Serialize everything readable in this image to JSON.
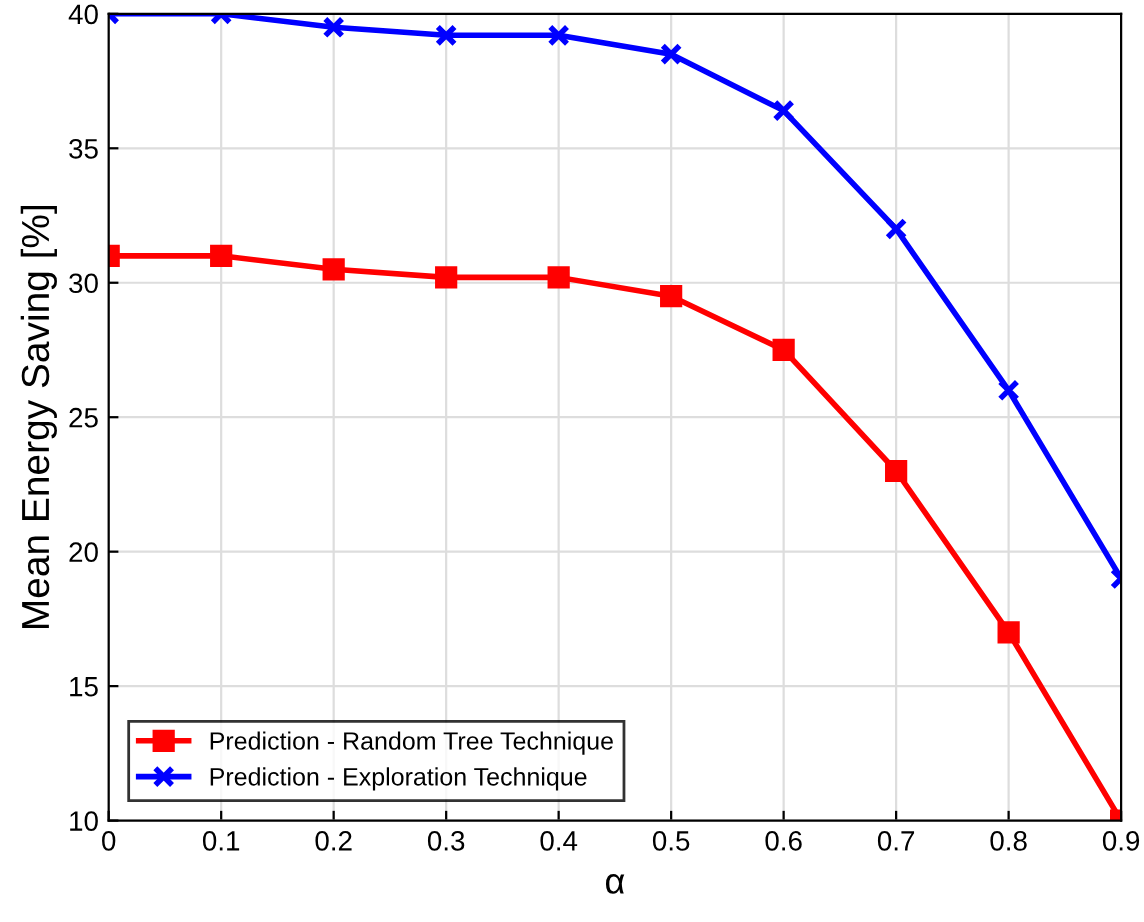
{
  "chart_data": {
    "type": "line",
    "xlabel": "α",
    "ylabel": "Mean Energy Saving [%]",
    "x": [
      0,
      0.1,
      0.2,
      0.3,
      0.4,
      0.5,
      0.6,
      0.7,
      0.8,
      0.9
    ],
    "series": [
      {
        "name": "Prediction - Random Tree Technique",
        "color": "#ff0000",
        "marker": "square",
        "values": [
          31,
          31,
          30.5,
          30.2,
          30.2,
          29.5,
          27.5,
          23,
          17,
          10
        ]
      },
      {
        "name": "Prediction - Exploration Technique",
        "color": "#0000ff",
        "marker": "cross",
        "values": [
          40,
          40,
          39.5,
          39.2,
          39.2,
          38.5,
          36.4,
          32,
          26,
          19
        ]
      }
    ],
    "xlim": [
      0,
      0.9
    ],
    "xticks": [
      0,
      0.1,
      0.2,
      0.3,
      0.4,
      0.5,
      0.6,
      0.7,
      0.8,
      0.9
    ],
    "ylim": [
      10,
      40
    ],
    "yticks": [
      10,
      15,
      20,
      25,
      30,
      35,
      40
    ],
    "grid": true,
    "legend": "bottom left",
    "line_style": "solid"
  }
}
